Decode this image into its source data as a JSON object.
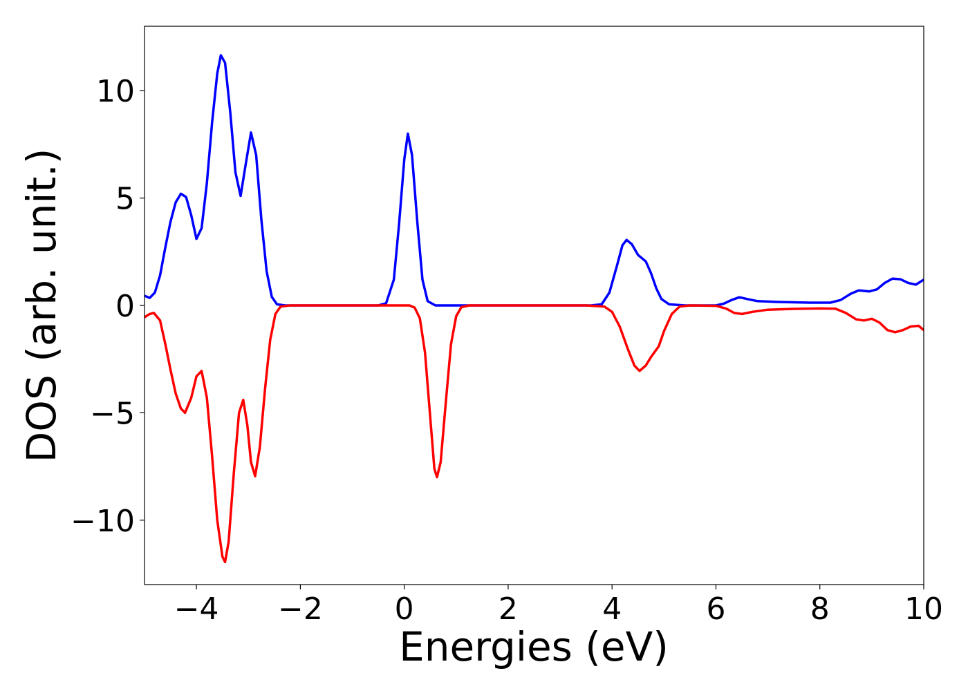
{
  "chart_data": {
    "type": "line",
    "xlabel": "Energies (eV)",
    "ylabel": "DOS (arb. unit.)",
    "xlim": [
      -5,
      10
    ],
    "ylim": [
      -13,
      13
    ],
    "grid": false,
    "legend": "none",
    "xticks": [
      -4,
      -2,
      0,
      2,
      4,
      6,
      8,
      10
    ],
    "xtick_labels": [
      "−4",
      "−2",
      "0",
      "2",
      "4",
      "6",
      "8",
      "10"
    ],
    "yticks": [
      -10,
      -5,
      0,
      5,
      10
    ],
    "ytick_labels": [
      "−10",
      "−5",
      "0",
      "5",
      "10"
    ],
    "series": [
      {
        "color": "#0000ff",
        "points": [
          [
            -5.0,
            0.45
          ],
          [
            -4.9,
            0.35
          ],
          [
            -4.8,
            0.6
          ],
          [
            -4.7,
            1.4
          ],
          [
            -4.6,
            2.7
          ],
          [
            -4.5,
            3.9
          ],
          [
            -4.4,
            4.8
          ],
          [
            -4.3,
            5.2
          ],
          [
            -4.2,
            5.05
          ],
          [
            -4.1,
            4.2
          ],
          [
            -4.0,
            3.1
          ],
          [
            -3.9,
            3.6
          ],
          [
            -3.8,
            5.7
          ],
          [
            -3.7,
            8.5
          ],
          [
            -3.6,
            10.8
          ],
          [
            -3.53,
            11.65
          ],
          [
            -3.45,
            11.3
          ],
          [
            -3.35,
            9.0
          ],
          [
            -3.25,
            6.2
          ],
          [
            -3.15,
            5.1
          ],
          [
            -3.05,
            6.6
          ],
          [
            -2.95,
            8.05
          ],
          [
            -2.85,
            7.0
          ],
          [
            -2.75,
            4.0
          ],
          [
            -2.65,
            1.6
          ],
          [
            -2.55,
            0.4
          ],
          [
            -2.45,
            0.05
          ],
          [
            -2.3,
            0.0
          ],
          [
            -1.0,
            0.0
          ],
          [
            -0.5,
            0.0
          ],
          [
            -0.35,
            0.1
          ],
          [
            -0.2,
            1.2
          ],
          [
            -0.1,
            3.8
          ],
          [
            0.0,
            6.8
          ],
          [
            0.07,
            8.0
          ],
          [
            0.15,
            7.0
          ],
          [
            0.25,
            3.9
          ],
          [
            0.35,
            1.2
          ],
          [
            0.45,
            0.2
          ],
          [
            0.6,
            0.0
          ],
          [
            2.0,
            0.0
          ],
          [
            3.6,
            0.0
          ],
          [
            3.8,
            0.05
          ],
          [
            3.95,
            0.6
          ],
          [
            4.1,
            1.9
          ],
          [
            4.2,
            2.8
          ],
          [
            4.28,
            3.05
          ],
          [
            4.38,
            2.85
          ],
          [
            4.5,
            2.35
          ],
          [
            4.65,
            2.05
          ],
          [
            4.75,
            1.5
          ],
          [
            4.85,
            0.8
          ],
          [
            4.95,
            0.3
          ],
          [
            5.1,
            0.05
          ],
          [
            5.4,
            0.0
          ],
          [
            6.0,
            0.0
          ],
          [
            6.15,
            0.08
          ],
          [
            6.3,
            0.25
          ],
          [
            6.45,
            0.38
          ],
          [
            6.6,
            0.3
          ],
          [
            6.8,
            0.2
          ],
          [
            7.2,
            0.16
          ],
          [
            7.8,
            0.13
          ],
          [
            8.2,
            0.13
          ],
          [
            8.4,
            0.25
          ],
          [
            8.6,
            0.55
          ],
          [
            8.75,
            0.7
          ],
          [
            8.95,
            0.65
          ],
          [
            9.1,
            0.75
          ],
          [
            9.25,
            1.05
          ],
          [
            9.4,
            1.25
          ],
          [
            9.55,
            1.22
          ],
          [
            9.7,
            1.05
          ],
          [
            9.85,
            0.97
          ],
          [
            10.0,
            1.2
          ]
        ]
      },
      {
        "color": "#ff0000",
        "points": [
          [
            -5.0,
            -0.55
          ],
          [
            -4.9,
            -0.4
          ],
          [
            -4.82,
            -0.35
          ],
          [
            -4.7,
            -0.7
          ],
          [
            -4.6,
            -1.8
          ],
          [
            -4.5,
            -3.0
          ],
          [
            -4.4,
            -4.1
          ],
          [
            -4.3,
            -4.8
          ],
          [
            -4.22,
            -5.0
          ],
          [
            -4.1,
            -4.3
          ],
          [
            -4.0,
            -3.3
          ],
          [
            -3.9,
            -3.05
          ],
          [
            -3.8,
            -4.3
          ],
          [
            -3.7,
            -7.0
          ],
          [
            -3.6,
            -10.0
          ],
          [
            -3.5,
            -11.7
          ],
          [
            -3.45,
            -11.95
          ],
          [
            -3.38,
            -11.0
          ],
          [
            -3.28,
            -7.8
          ],
          [
            -3.18,
            -5.0
          ],
          [
            -3.1,
            -4.4
          ],
          [
            -3.02,
            -5.6
          ],
          [
            -2.95,
            -7.3
          ],
          [
            -2.87,
            -7.95
          ],
          [
            -2.78,
            -6.6
          ],
          [
            -2.68,
            -3.9
          ],
          [
            -2.58,
            -1.6
          ],
          [
            -2.48,
            -0.4
          ],
          [
            -2.38,
            -0.05
          ],
          [
            -2.2,
            0.0
          ],
          [
            -1.0,
            0.0
          ],
          [
            0.1,
            0.0
          ],
          [
            0.2,
            -0.1
          ],
          [
            0.3,
            -0.6
          ],
          [
            0.4,
            -2.2
          ],
          [
            0.5,
            -5.2
          ],
          [
            0.58,
            -7.6
          ],
          [
            0.63,
            -8.0
          ],
          [
            0.7,
            -7.3
          ],
          [
            0.8,
            -4.5
          ],
          [
            0.9,
            -1.8
          ],
          [
            1.0,
            -0.5
          ],
          [
            1.1,
            -0.08
          ],
          [
            1.25,
            0.0
          ],
          [
            3.5,
            0.0
          ],
          [
            3.85,
            -0.05
          ],
          [
            4.0,
            -0.3
          ],
          [
            4.15,
            -1.0
          ],
          [
            4.3,
            -2.0
          ],
          [
            4.43,
            -2.8
          ],
          [
            4.53,
            -3.05
          ],
          [
            4.65,
            -2.8
          ],
          [
            4.75,
            -2.4
          ],
          [
            4.9,
            -1.9
          ],
          [
            5.0,
            -1.2
          ],
          [
            5.15,
            -0.4
          ],
          [
            5.3,
            -0.05
          ],
          [
            5.5,
            0.0
          ],
          [
            6.0,
            -0.02
          ],
          [
            6.2,
            -0.15
          ],
          [
            6.35,
            -0.35
          ],
          [
            6.5,
            -0.4
          ],
          [
            6.7,
            -0.3
          ],
          [
            7.0,
            -0.2
          ],
          [
            7.5,
            -0.16
          ],
          [
            8.0,
            -0.14
          ],
          [
            8.3,
            -0.15
          ],
          [
            8.5,
            -0.35
          ],
          [
            8.7,
            -0.65
          ],
          [
            8.85,
            -0.7
          ],
          [
            9.0,
            -0.62
          ],
          [
            9.15,
            -0.8
          ],
          [
            9.3,
            -1.15
          ],
          [
            9.45,
            -1.25
          ],
          [
            9.6,
            -1.15
          ],
          [
            9.75,
            -0.98
          ],
          [
            9.9,
            -0.95
          ],
          [
            10.0,
            -1.15
          ]
        ]
      }
    ]
  }
}
